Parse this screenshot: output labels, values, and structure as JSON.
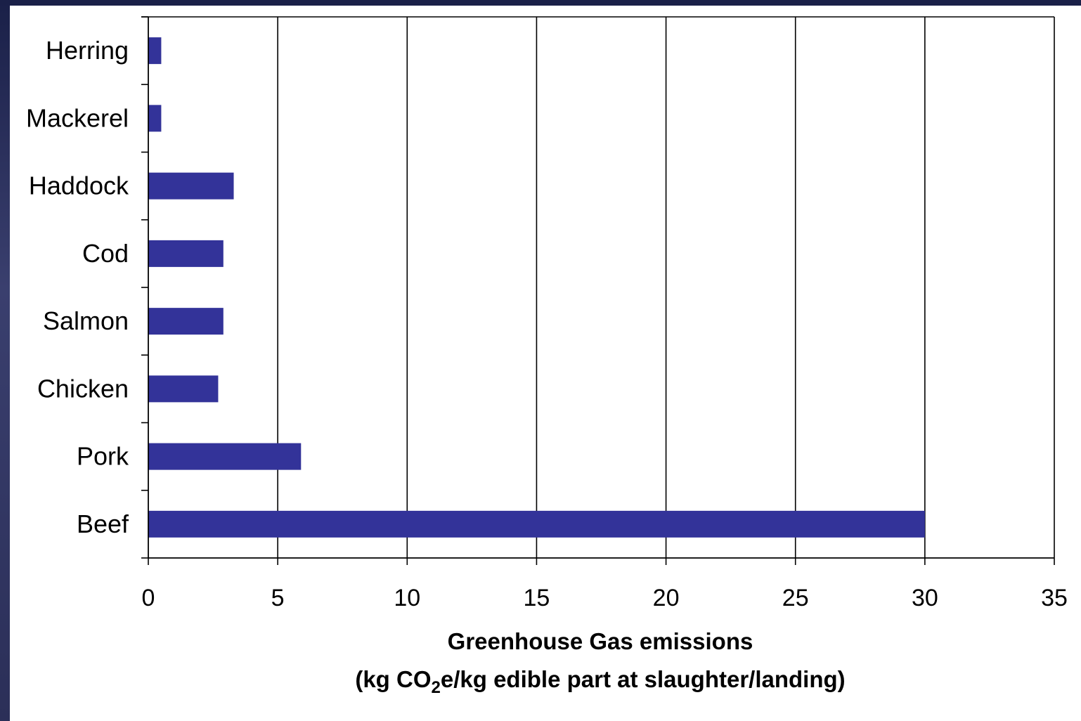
{
  "chart_data": {
    "type": "bar",
    "orientation": "horizontal",
    "categories": [
      "Herring",
      "Mackerel",
      "Haddock",
      "Cod",
      "Salmon",
      "Chicken",
      "Pork",
      "Beef"
    ],
    "values": [
      0.5,
      0.5,
      3.3,
      2.9,
      2.9,
      2.7,
      5.9,
      30
    ],
    "bar_color": "#333399",
    "xlabel_line1": "Greenhouse Gas emissions",
    "xlabel_line2_prefix": "(kg CO",
    "xlabel_line2_sub": "2",
    "xlabel_line2_suffix": "e/kg edible part at slaughter/landing)",
    "xlim": [
      0,
      35
    ],
    "xticks": [
      0,
      5,
      10,
      15,
      20,
      25,
      30,
      35
    ],
    "xtick_labels": [
      "0",
      "5",
      "10",
      "15",
      "20",
      "25",
      "30",
      "35"
    ],
    "grid": "vertical"
  }
}
